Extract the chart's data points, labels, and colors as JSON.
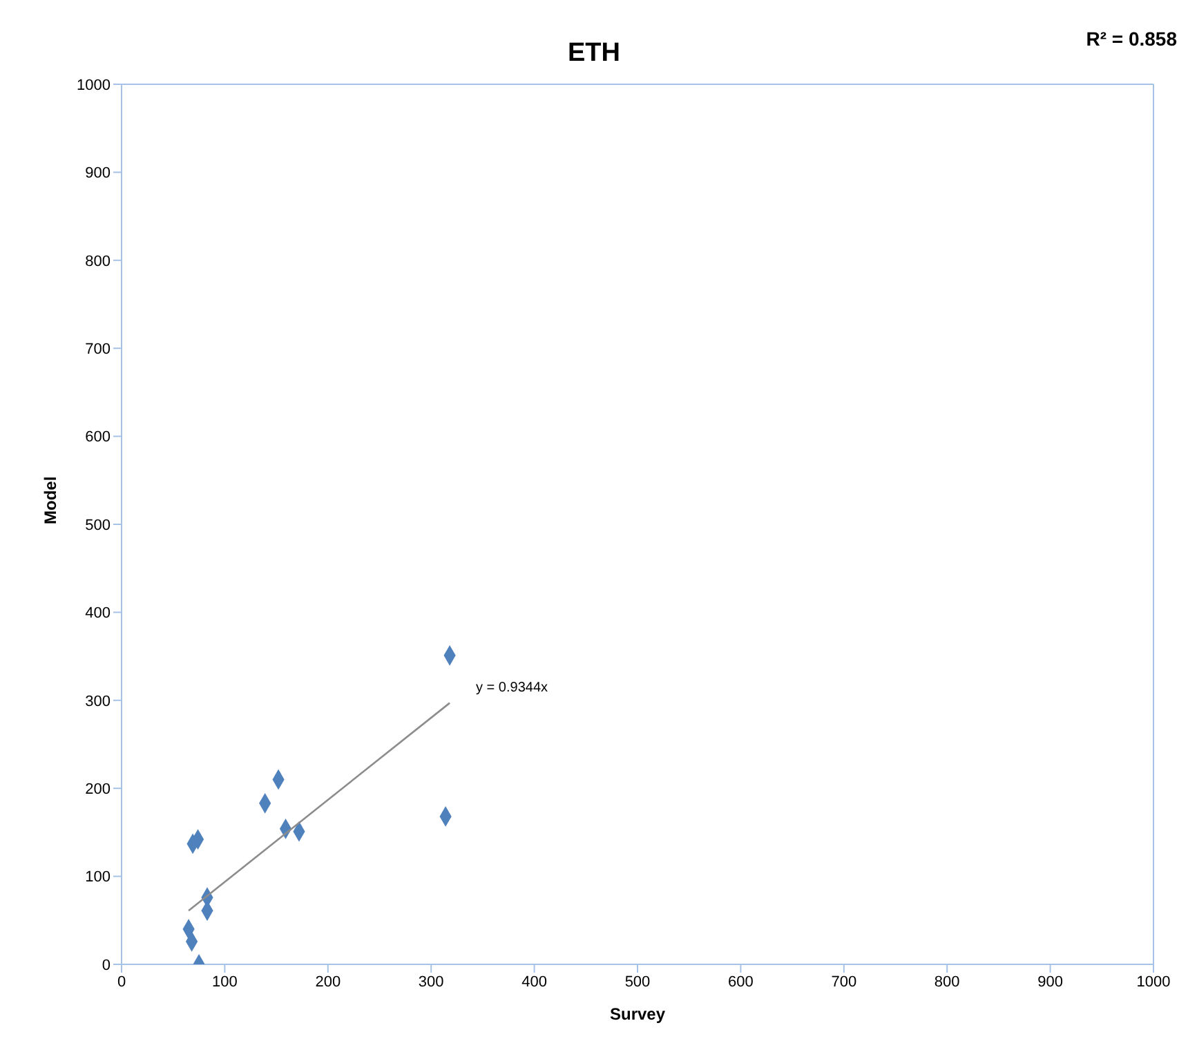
{
  "chart_data": {
    "type": "scatter",
    "title": "ETH",
    "xlabel": "Survey",
    "ylabel": "Model",
    "xlim": [
      0,
      1000
    ],
    "xticks": [
      0,
      100,
      200,
      300,
      400,
      500,
      600,
      700,
      800,
      900,
      1000
    ],
    "ylim": [
      0,
      1000
    ],
    "yticks": [
      0,
      100,
      200,
      300,
      400,
      500,
      600,
      700,
      800,
      900,
      1000
    ],
    "grid": false,
    "series": [
      {
        "color": "#4f81bd",
        "marker": "diamond",
        "x": [
          318,
          314,
          152,
          139,
          159,
          172,
          69,
          74,
          83,
          83,
          65,
          68,
          75
        ],
        "values": [
          351,
          168,
          210,
          183,
          154,
          151,
          137,
          142,
          76,
          61,
          40,
          26,
          0
        ]
      },
      {
        "type": "line",
        "color": "#8c8c8c",
        "marker": "none",
        "x": [
          65,
          318
        ],
        "values": [
          61,
          297
        ]
      }
    ],
    "annotations": [
      "y = 0.9344x",
      "R² = 0.858"
    ]
  }
}
